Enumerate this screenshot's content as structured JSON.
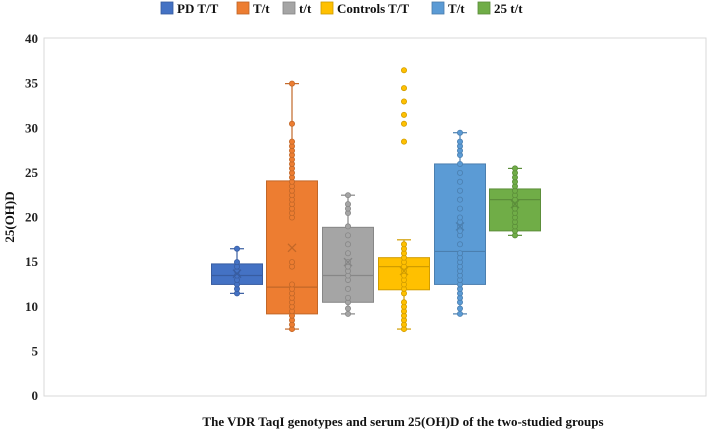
{
  "chart_data": {
    "type": "box",
    "title": "",
    "xlabel": "The VDR TaqI genotypes and serum 25(OH)D of the two-studied groups",
    "ylabel": "25(OH)D",
    "ylim": [
      0,
      40
    ],
    "yticks": [
      0,
      5,
      10,
      15,
      20,
      25,
      30,
      35,
      40
    ],
    "grid": false,
    "legend_position": "top",
    "series": [
      {
        "name": "PD T/T",
        "color": "#4472C4",
        "q1": 12.5,
        "median": 13.5,
        "q3": 14.8,
        "mean": 13.7,
        "whisker_low": 11.5,
        "whisker_high": 16.5,
        "outliers": [],
        "points": [
          11.5,
          12.0,
          12.5,
          13.0,
          13.5,
          14.0,
          14.5,
          15.0,
          16.5
        ]
      },
      {
        "name": "T/t",
        "color": "#ED7D31",
        "q1": 9.2,
        "median": 12.2,
        "q3": 24.1,
        "mean": 16.6,
        "whisker_low": 7.5,
        "whisker_high": 35.0,
        "outliers": [],
        "points": [
          7.5,
          8.0,
          8.5,
          9.0,
          9.5,
          10.0,
          10.5,
          11.0,
          11.5,
          12.0,
          12.5,
          14.5,
          15.0,
          20.0,
          20.5,
          21.0,
          21.5,
          22.0,
          22.5,
          23.0,
          23.5,
          24.0,
          24.5,
          25.0,
          25.5,
          26.0,
          26.5,
          27.0,
          27.5,
          28.0,
          28.5,
          30.5,
          35.0
        ]
      },
      {
        "name": "t/t",
        "color": "#A5A5A5",
        "q1": 10.5,
        "median": 13.5,
        "q3": 18.9,
        "mean": 15.0,
        "whisker_low": 9.2,
        "whisker_high": 22.5,
        "outliers": [],
        "points": [
          9.2,
          9.8,
          10.5,
          11.0,
          12.0,
          13.0,
          13.5,
          14.0,
          14.5,
          15.0,
          16.0,
          17.0,
          18.0,
          19.0,
          20.5,
          21.0,
          21.5,
          22.5
        ]
      },
      {
        "name": "Controls T/T",
        "color": "#FFC000",
        "q1": 11.9,
        "median": 14.5,
        "q3": 15.5,
        "mean": 14.0,
        "whisker_low": 7.5,
        "whisker_high": 17.5,
        "outliers": [
          28.5,
          30.5,
          31.5,
          33.0,
          34.5,
          36.5
        ],
        "points": [
          7.5,
          8.0,
          8.5,
          9.0,
          9.5,
          10.0,
          10.5,
          11.5,
          12.0,
          12.5,
          13.0,
          13.5,
          14.0,
          14.5,
          15.0,
          15.5,
          16.0,
          16.5,
          17.0
        ]
      },
      {
        "name": "T/t",
        "color": "#5B9BD5",
        "q1": 12.5,
        "median": 16.2,
        "q3": 26.0,
        "mean": 19.0,
        "whisker_low": 9.2,
        "whisker_high": 29.5,
        "outliers": [],
        "points": [
          9.2,
          9.8,
          10.5,
          11.0,
          11.5,
          12.0,
          12.5,
          13.0,
          13.5,
          14.0,
          14.5,
          15.0,
          15.5,
          16.0,
          17.0,
          18.0,
          18.5,
          19.0,
          19.5,
          20.0,
          21.0,
          22.0,
          23.0,
          24.0,
          25.0,
          26.0,
          27.0,
          27.5,
          28.0,
          28.5,
          29.5
        ]
      },
      {
        "name": "25 t/t",
        "color": "#70AD47",
        "q1": 18.5,
        "median": 22.0,
        "q3": 23.2,
        "mean": 21.5,
        "whisker_low": 18.0,
        "whisker_high": 25.5,
        "outliers": [],
        "points": [
          18.0,
          18.5,
          19.0,
          19.5,
          20.0,
          20.5,
          21.0,
          21.5,
          22.0,
          22.5,
          23.0,
          23.5,
          24.0,
          24.5,
          25.0,
          25.5
        ]
      }
    ]
  }
}
